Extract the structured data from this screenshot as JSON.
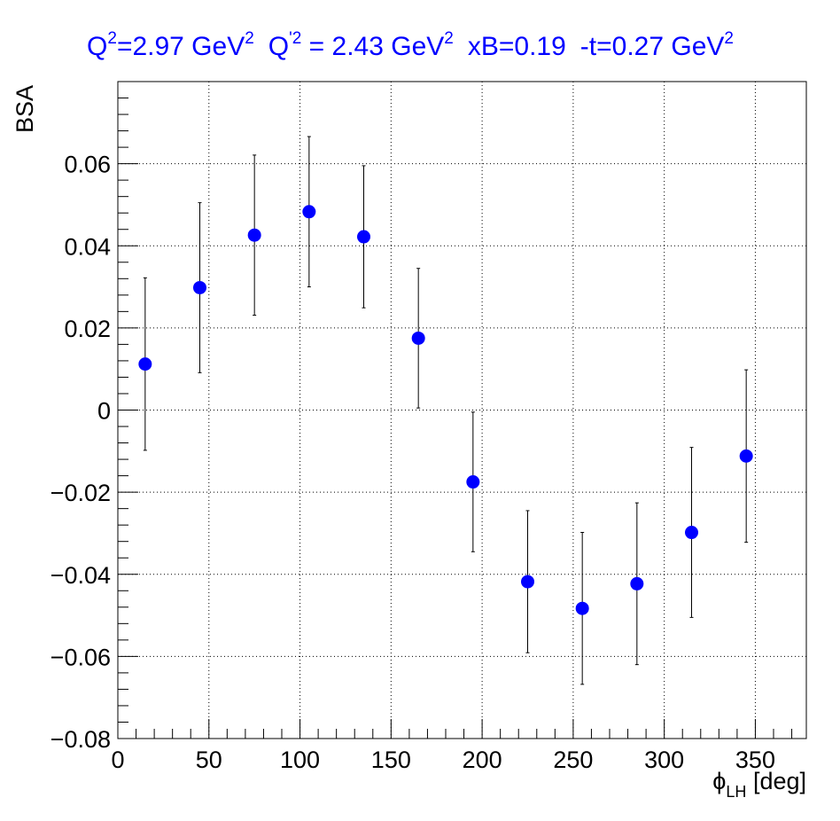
{
  "colors": {
    "title": "#0000ff",
    "marker": "#0000ff",
    "axis": "#000000",
    "grid": "#000000"
  },
  "chart_data": {
    "type": "scatter",
    "title": {
      "q2": "Q",
      "q2_sup": "2",
      "q2_val": "=2.97 GeV",
      "q2_val_sup": "2",
      "qp2": "Q",
      "qp2_sup": "'2",
      "qp2_val": " = 2.43 GeV",
      "qp2_val_sup": "2",
      "xb": "xB=0.19",
      "t": "-t=0.27 GeV",
      "t_sup": "2"
    },
    "xlabel": {
      "main": "ϕ",
      "sub": "LH",
      "unit": " [deg]"
    },
    "ylabel": "BSA",
    "xlim": [
      0,
      378
    ],
    "ylim": [
      -0.08,
      0.08
    ],
    "xticks": [
      "0",
      "50",
      "100",
      "150",
      "200",
      "250",
      "300",
      "350"
    ],
    "xtick_values": [
      0,
      50,
      100,
      150,
      200,
      250,
      300,
      350
    ],
    "yticks": [
      "−0.08",
      "−0.06",
      "−0.04",
      "−0.02",
      "0",
      "0.02",
      "0.04",
      "0.06"
    ],
    "ytick_values": [
      -0.08,
      -0.06,
      -0.04,
      -0.02,
      0,
      0.02,
      0.04,
      0.06
    ],
    "grid": true,
    "points": [
      {
        "x": 15,
        "y": 0.0112,
        "err": 0.021
      },
      {
        "x": 45,
        "y": 0.0298,
        "err": 0.0207
      },
      {
        "x": 75,
        "y": 0.0426,
        "err": 0.0195
      },
      {
        "x": 105,
        "y": 0.0483,
        "err": 0.0183
      },
      {
        "x": 135,
        "y": 0.0422,
        "err": 0.0173
      },
      {
        "x": 165,
        "y": 0.0175,
        "err": 0.017
      },
      {
        "x": 195,
        "y": -0.0175,
        "err": 0.017
      },
      {
        "x": 225,
        "y": -0.0418,
        "err": 0.0173
      },
      {
        "x": 255,
        "y": -0.0483,
        "err": 0.0185
      },
      {
        "x": 285,
        "y": -0.0423,
        "err": 0.0197
      },
      {
        "x": 315,
        "y": -0.0298,
        "err": 0.0207
      },
      {
        "x": 345,
        "y": -0.0112,
        "err": 0.021
      }
    ]
  }
}
